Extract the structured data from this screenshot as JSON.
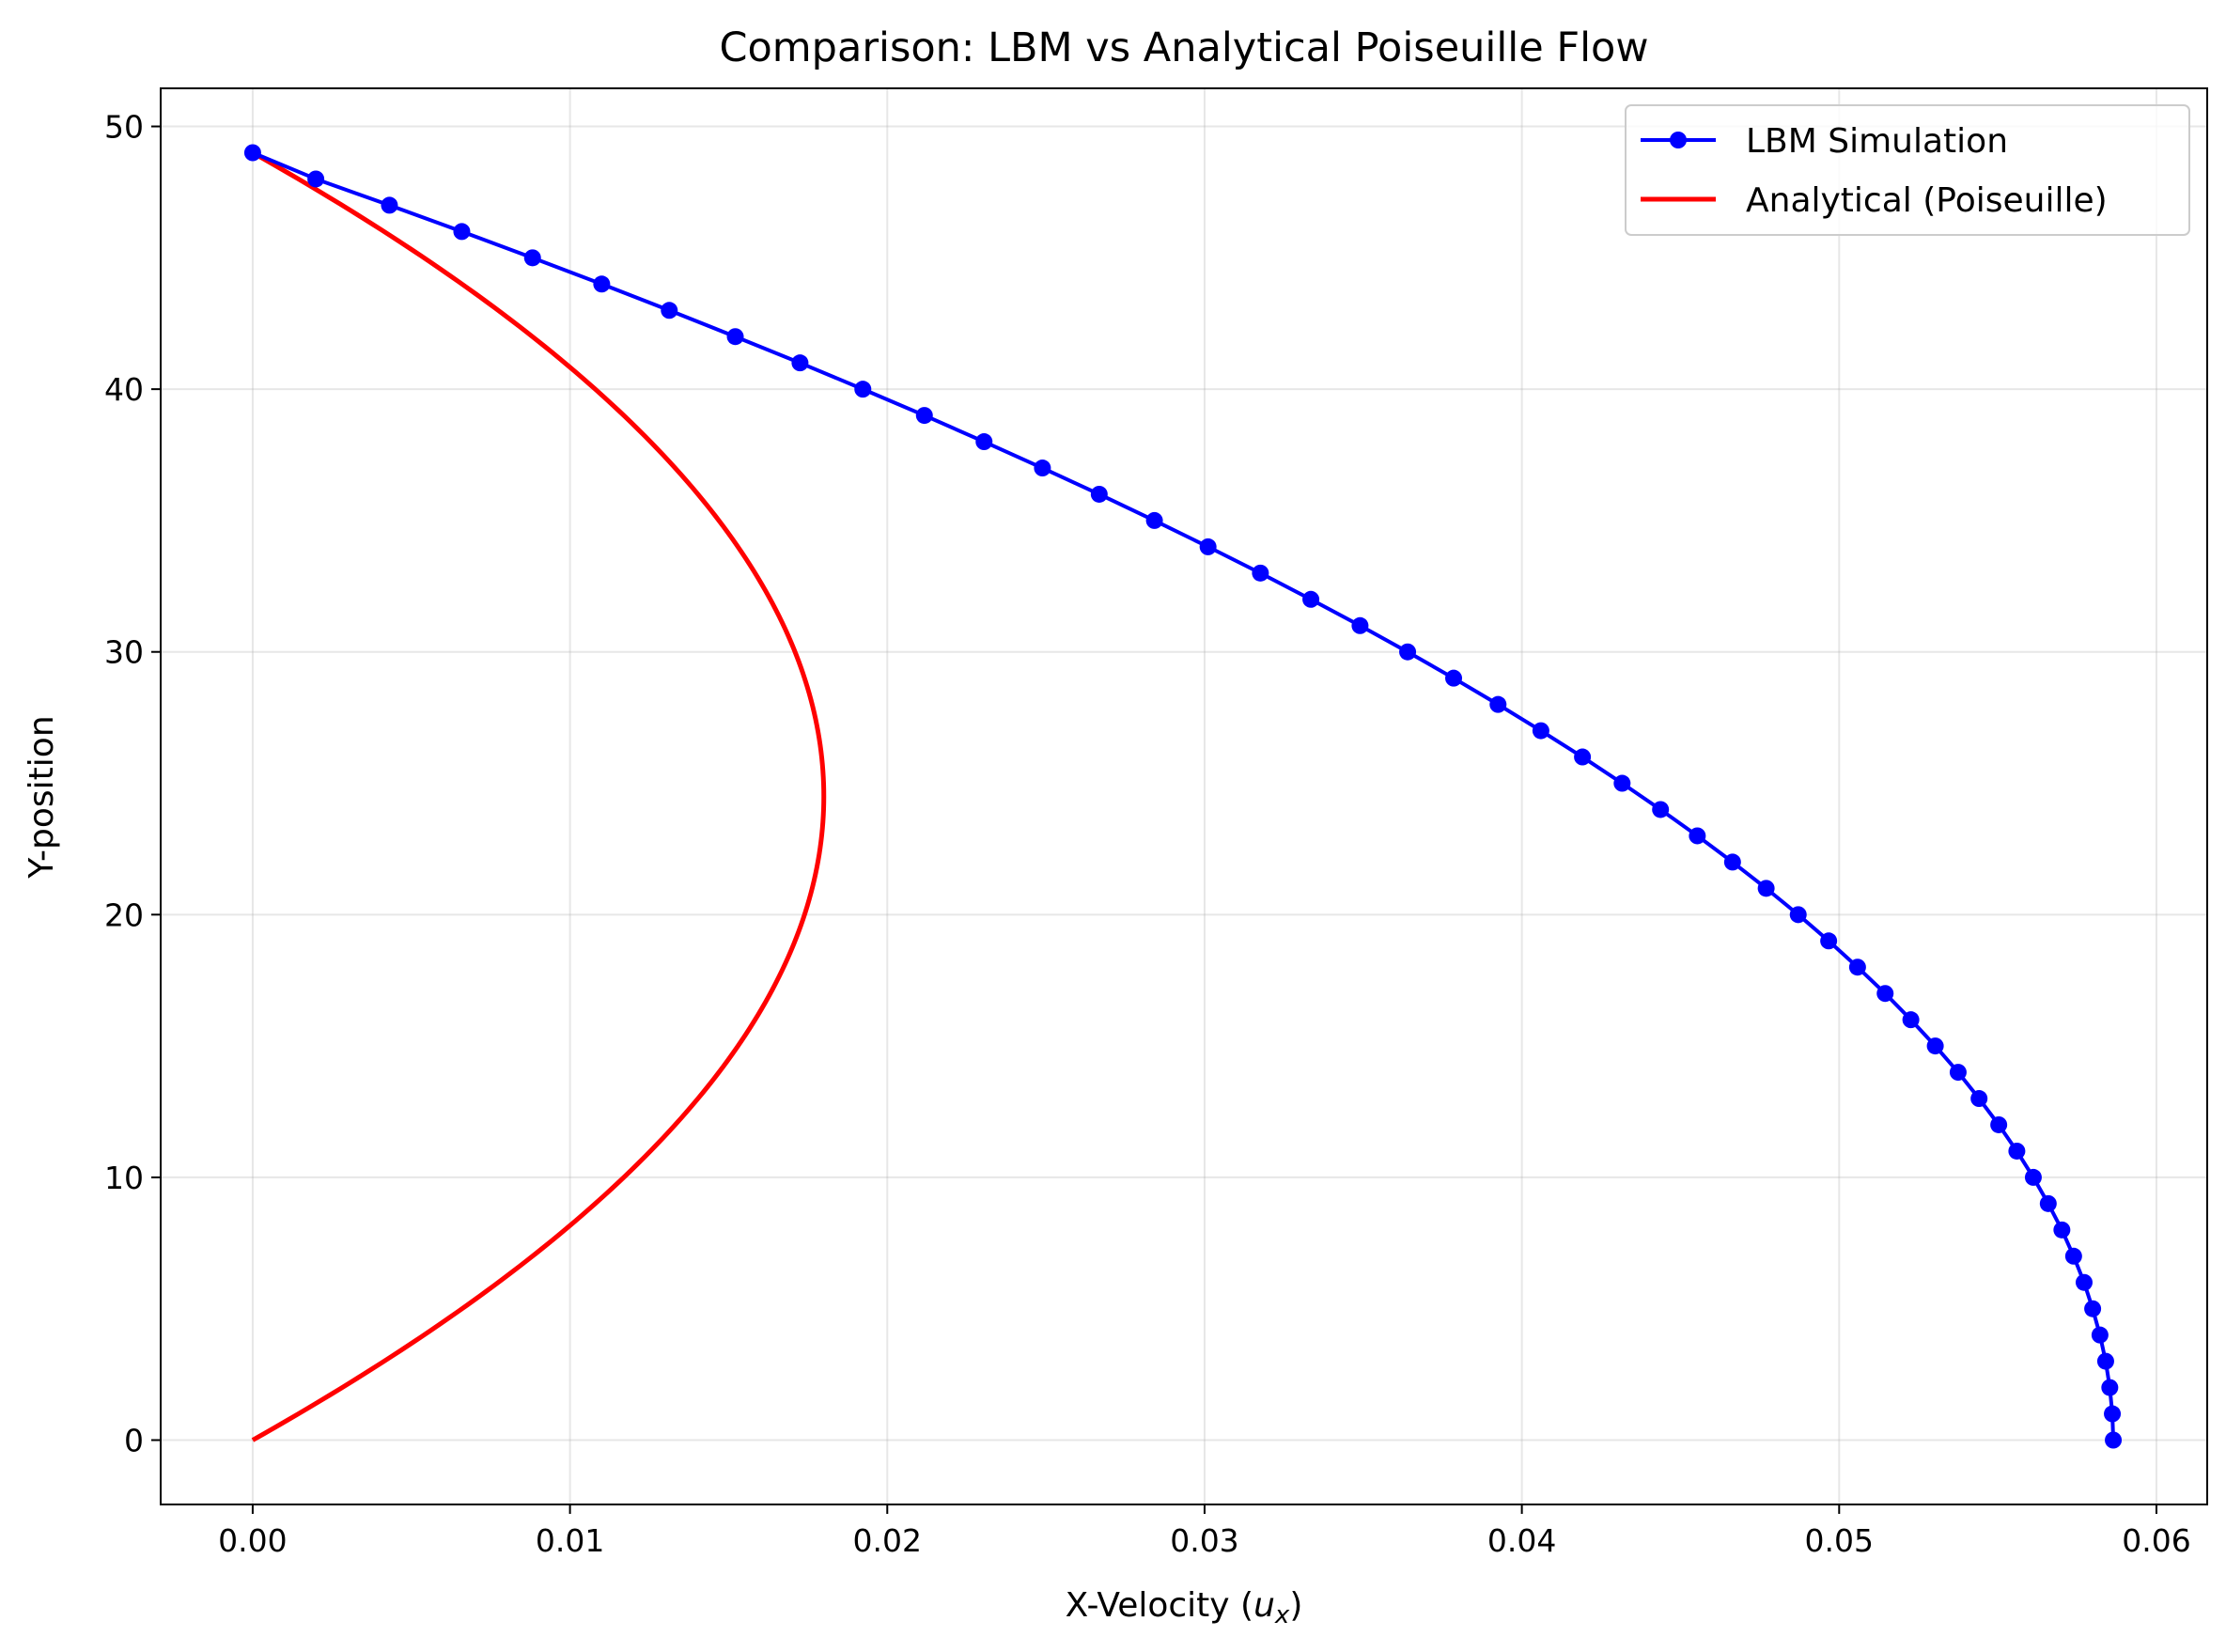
{
  "chart_data": {
    "type": "line",
    "title": "Comparison: LBM vs Analytical Poiseuille Flow",
    "xlabel": {
      "prefix": "X-Velocity (",
      "var": "u",
      "sub": "x",
      "suffix": ")"
    },
    "ylabel": "Y-position",
    "xlim": [
      -0.0029,
      0.0616
    ],
    "ylim": [
      -2.45,
      51.45
    ],
    "xticks": [
      0.0,
      0.01,
      0.02,
      0.03,
      0.04,
      0.05,
      0.06
    ],
    "xtick_labels": [
      "0.00",
      "0.01",
      "0.02",
      "0.03",
      "0.04",
      "0.05",
      "0.06"
    ],
    "yticks": [
      0,
      10,
      20,
      30,
      40,
      50
    ],
    "ytick_labels": [
      "0",
      "10",
      "20",
      "30",
      "40",
      "50"
    ],
    "grid": true,
    "legend_position": "upper right",
    "series": [
      {
        "name": "LBM Simulation",
        "color": "#0000ff",
        "marker": "circle",
        "x": [
          0.05864,
          0.05861,
          0.05853,
          0.0584,
          0.05822,
          0.05799,
          0.05772,
          0.05739,
          0.05702,
          0.05659,
          0.05612,
          0.0556,
          0.05503,
          0.05441,
          0.05375,
          0.05303,
          0.05226,
          0.05145,
          0.05058,
          0.04967,
          0.04871,
          0.0477,
          0.04664,
          0.04553,
          0.04437,
          0.04316,
          0.04191,
          0.0406,
          0.03925,
          0.03785,
          0.0364,
          0.0349,
          0.03335,
          0.03176,
          0.03011,
          0.02842,
          0.02668,
          0.02489,
          0.02305,
          0.02117,
          0.01923,
          0.01725,
          0.01521,
          0.01313,
          0.011,
          0.00882,
          0.00659,
          0.00431,
          0.00199,
          0.0
        ],
        "y": [
          0,
          1,
          2,
          3,
          4,
          5,
          6,
          7,
          8,
          9,
          10,
          11,
          12,
          13,
          14,
          15,
          16,
          17,
          18,
          19,
          20,
          21,
          22,
          23,
          24,
          25,
          26,
          27,
          28,
          29,
          30,
          31,
          32,
          33,
          34,
          35,
          36,
          37,
          38,
          39,
          40,
          41,
          42,
          43,
          44,
          45,
          46,
          47,
          48,
          49
        ]
      },
      {
        "name": "Analytical (Poiseuille)",
        "color": "#ff0000",
        "marker": "none",
        "y_range": [
          0,
          49
        ],
        "peak_x": 0.018,
        "profile": "parabolic"
      }
    ]
  }
}
